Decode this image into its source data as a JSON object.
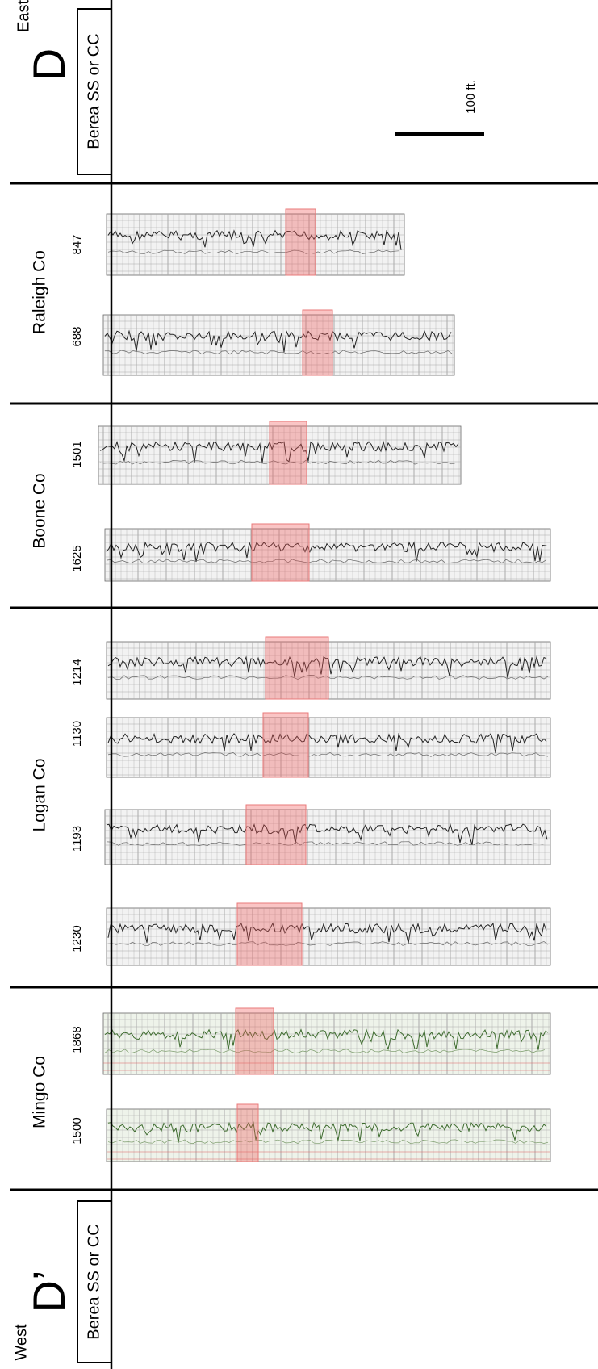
{
  "header": {
    "direction": "East",
    "label": "D",
    "unit": "Berea SS or CC",
    "scale": "100 ft."
  },
  "counties": [
    {
      "name": "Raleigh Co",
      "wells": [
        "847",
        "688"
      ]
    },
    {
      "name": "Boone Co",
      "wells": [
        "1501",
        "1625"
      ]
    },
    {
      "name": "Logan Co",
      "wells": [
        "1214",
        "1130",
        "1193",
        "1230"
      ]
    },
    {
      "name": "Mingo Co",
      "wells": [
        "1868",
        "1500"
      ]
    }
  ],
  "footer": {
    "direction": "West",
    "label": "D’",
    "unit": "Berea SS or CC"
  }
}
